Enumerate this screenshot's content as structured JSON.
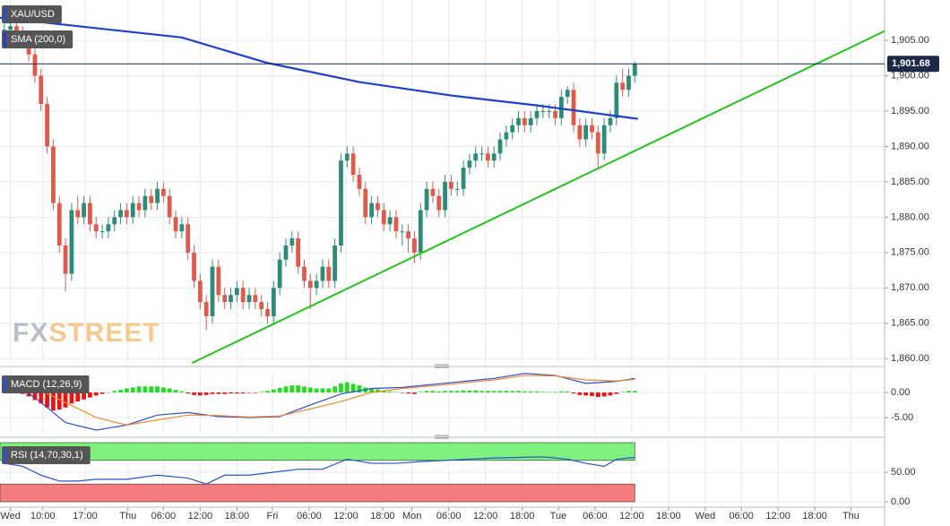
{
  "chart_data": [
    {
      "type": "candlestick",
      "name": "XAU/USD",
      "up_color": "#2e8b78",
      "down_color": "#e05a4c",
      "xlim": [
        -0.7,
        143.8
      ],
      "ylim": [
        1859.4,
        1910.7
      ],
      "grid": true,
      "yticks": [
        {
          "value": 1860,
          "label": "1,860.00"
        },
        {
          "value": 1865,
          "label": "1,865.00"
        },
        {
          "value": 1870,
          "label": "1,870.00"
        },
        {
          "value": 1875,
          "label": "1,875.00"
        },
        {
          "value": 1880,
          "label": "1,880.00"
        },
        {
          "value": 1885,
          "label": "1,885.00"
        },
        {
          "value": 1890,
          "label": "1,890.00"
        },
        {
          "value": 1895,
          "label": "1,895.00"
        },
        {
          "value": 1900,
          "label": "1,900.00"
        },
        {
          "value": 1905,
          "label": "1,905.00"
        }
      ],
      "xticks": [
        {
          "value": 1,
          "label": "Wed"
        },
        {
          "value": 6.3,
          "label": "10:00"
        },
        {
          "value": 13.2,
          "label": "17:00"
        },
        {
          "value": 20.2,
          "label": "Thu"
        },
        {
          "value": 26,
          "label": "06:00"
        },
        {
          "value": 32,
          "label": "12:00"
        },
        {
          "value": 38,
          "label": "18:00"
        },
        {
          "value": 43.8,
          "label": "Fri"
        },
        {
          "value": 49.8,
          "label": "06:00"
        },
        {
          "value": 55.8,
          "label": "12:00"
        },
        {
          "value": 61.8,
          "label": "18:00"
        },
        {
          "value": 66.6,
          "label": "Mon"
        },
        {
          "value": 72.6,
          "label": "06:00"
        },
        {
          "value": 78.6,
          "label": "12:00"
        },
        {
          "value": 84.6,
          "label": "18:00"
        },
        {
          "value": 90.5,
          "label": "Tue"
        },
        {
          "value": 96.5,
          "label": "06:00"
        },
        {
          "value": 102.5,
          "label": "12:00"
        },
        {
          "value": 108.5,
          "label": "18:00"
        },
        {
          "value": 114.5,
          "label": "Wed"
        },
        {
          "value": 120.4,
          "label": "06:00"
        },
        {
          "value": 126.4,
          "label": "12:00"
        },
        {
          "value": 132.4,
          "label": "18:00"
        },
        {
          "value": 138.3,
          "label": "Thu"
        }
      ],
      "ohlc": [
        [
          1906,
          1907.5,
          1905,
          1906.5
        ],
        [
          1906.5,
          1908,
          1905.5,
          1907
        ],
        [
          1907,
          1908,
          1905,
          1906
        ],
        [
          1906,
          1907,
          1904,
          1905
        ],
        [
          1905,
          1906,
          1902,
          1903
        ],
        [
          1903,
          1904,
          1899,
          1900
        ],
        [
          1900,
          1901,
          1895,
          1896
        ],
        [
          1896,
          1897,
          1889,
          1890
        ],
        [
          1890,
          1891,
          1881,
          1882
        ],
        [
          1882,
          1883,
          1875,
          1876
        ],
        [
          1876,
          1877,
          1869.5,
          1872
        ],
        [
          1872,
          1882,
          1871,
          1881
        ],
        [
          1881,
          1883,
          1879,
          1880
        ],
        [
          1880,
          1883,
          1879,
          1882
        ],
        [
          1882,
          1883,
          1878,
          1879
        ],
        [
          1879,
          1880,
          1877,
          1878
        ],
        [
          1878,
          1879,
          1877,
          1878
        ],
        [
          1878,
          1880,
          1877,
          1879
        ],
        [
          1879,
          1881,
          1878,
          1880
        ],
        [
          1880,
          1882,
          1879,
          1881
        ],
        [
          1881,
          1882,
          1879,
          1880
        ],
        [
          1880,
          1883,
          1879,
          1882
        ],
        [
          1882,
          1883,
          1880,
          1881
        ],
        [
          1881,
          1884,
          1880,
          1883
        ],
        [
          1883,
          1884,
          1881,
          1882
        ],
        [
          1882,
          1885,
          1881,
          1884
        ],
        [
          1884,
          1885,
          1882,
          1883
        ],
        [
          1883,
          1884,
          1879,
          1880
        ],
        [
          1880,
          1881,
          1877,
          1878
        ],
        [
          1878,
          1880,
          1877,
          1879
        ],
        [
          1879,
          1880,
          1874,
          1875
        ],
        [
          1875,
          1876,
          1870,
          1871
        ],
        [
          1871,
          1872,
          1867,
          1868
        ],
        [
          1868,
          1869,
          1864,
          1866
        ],
        [
          1866,
          1874,
          1865,
          1873
        ],
        [
          1873,
          1874,
          1868,
          1869
        ],
        [
          1869,
          1870,
          1867,
          1868
        ],
        [
          1868,
          1870,
          1867,
          1869
        ],
        [
          1869,
          1871,
          1868,
          1870
        ],
        [
          1870,
          1871,
          1867,
          1868
        ],
        [
          1868,
          1870,
          1867,
          1869
        ],
        [
          1869,
          1870,
          1867,
          1868
        ],
        [
          1868,
          1869,
          1866,
          1867
        ],
        [
          1867,
          1868,
          1865,
          1866
        ],
        [
          1866,
          1871,
          1865,
          1870
        ],
        [
          1870,
          1875,
          1869,
          1874
        ],
        [
          1874,
          1877,
          1873,
          1876
        ],
        [
          1876,
          1878,
          1875,
          1877
        ],
        [
          1877,
          1878,
          1872,
          1873
        ],
        [
          1873,
          1874,
          1870,
          1871
        ],
        [
          1871,
          1872,
          1867,
          1870
        ],
        [
          1870,
          1872,
          1869,
          1871
        ],
        [
          1871,
          1874,
          1870,
          1873
        ],
        [
          1873,
          1874,
          1870,
          1871
        ],
        [
          1871,
          1877,
          1870,
          1876
        ],
        [
          1876,
          1889,
          1875,
          1888
        ],
        [
          1888,
          1890,
          1887,
          1889
        ],
        [
          1889,
          1890,
          1885,
          1886
        ],
        [
          1886,
          1887,
          1883,
          1884
        ],
        [
          1884,
          1885,
          1879,
          1880
        ],
        [
          1880,
          1883,
          1879,
          1882
        ],
        [
          1882,
          1883,
          1880,
          1881
        ],
        [
          1881,
          1882,
          1878,
          1879
        ],
        [
          1879,
          1881,
          1878,
          1880
        ],
        [
          1880,
          1881,
          1877,
          1878
        ],
        [
          1878,
          1879,
          1876,
          1878
        ],
        [
          1878,
          1879,
          1875,
          1877
        ],
        [
          1877,
          1878,
          1873.5,
          1875
        ],
        [
          1875,
          1882,
          1874,
          1881
        ],
        [
          1881,
          1885,
          1880,
          1884
        ],
        [
          1884,
          1885,
          1882,
          1883
        ],
        [
          1883,
          1884,
          1880,
          1881
        ],
        [
          1881,
          1886,
          1880,
          1885
        ],
        [
          1885,
          1886,
          1883,
          1884
        ],
        [
          1884,
          1885,
          1883,
          1884
        ],
        [
          1884,
          1888,
          1883,
          1887
        ],
        [
          1887,
          1889,
          1886,
          1888
        ],
        [
          1888,
          1890,
          1887,
          1889
        ],
        [
          1889,
          1890,
          1888,
          1889
        ],
        [
          1889,
          1890,
          1887,
          1888
        ],
        [
          1888,
          1890,
          1887,
          1889
        ],
        [
          1889,
          1892,
          1888,
          1891
        ],
        [
          1891,
          1893,
          1890,
          1892
        ],
        [
          1892,
          1894,
          1891,
          1893
        ],
        [
          1893,
          1895,
          1892,
          1894
        ],
        [
          1894,
          1895,
          1892,
          1893
        ],
        [
          1893,
          1895,
          1892,
          1894
        ],
        [
          1894,
          1896,
          1893,
          1895
        ],
        [
          1895,
          1896,
          1894,
          1895
        ],
        [
          1895,
          1896,
          1894,
          1895
        ],
        [
          1895,
          1896,
          1893,
          1894
        ],
        [
          1894,
          1898,
          1893,
          1897
        ],
        [
          1897,
          1898.5,
          1896,
          1898
        ],
        [
          1898,
          1899,
          1892,
          1893
        ],
        [
          1893,
          1894,
          1890,
          1891
        ],
        [
          1891,
          1894,
          1890,
          1893
        ],
        [
          1893,
          1894,
          1891,
          1892
        ],
        [
          1892,
          1893,
          1887,
          1889
        ],
        [
          1889,
          1894,
          1888,
          1893
        ],
        [
          1893,
          1895,
          1892,
          1894
        ],
        [
          1894,
          1900,
          1893,
          1899
        ],
        [
          1899,
          1901,
          1897,
          1898
        ],
        [
          1898,
          1901,
          1897,
          1900
        ],
        [
          1900,
          1902,
          1899,
          1901.68
        ]
      ],
      "sma": {
        "name": "SMA (200,0)",
        "color": "#1f3fcf",
        "x": [
          -0.7,
          29,
          43,
          58,
          73,
          87,
          103.5
        ],
        "values": [
          1908.2,
          1905.4,
          1901.8,
          1899.1,
          1897.2,
          1895.8,
          1893.9
        ]
      },
      "trendline": {
        "color": "#22c41a",
        "x": [
          30.7,
          143.8
        ],
        "values": [
          1859.4,
          1906.3
        ]
      },
      "price_line": {
        "value": 1901.68,
        "value_label": "1,901.68",
        "color": "#1c2a4a"
      },
      "watermark": [
        "FX",
        "STREET"
      ]
    },
    {
      "type": "macd",
      "name": "MACD (12,26,9)",
      "xlim": [
        -0.7,
        143.8
      ],
      "ylim": [
        -8.4,
        4.46
      ],
      "grid": true,
      "yticks": [
        {
          "value": -5,
          "label": "-5.00"
        },
        {
          "value": 0,
          "label": "0.00"
        }
      ],
      "histogram": {
        "up_color": "#22dd22",
        "down_color": "#ee1111",
        "values": [
          0.3,
          0.1,
          -0.1,
          -0.3,
          -0.8,
          -1.5,
          -2.2,
          -3,
          -3.6,
          -3.4,
          -3,
          -2.2,
          -1.8,
          -1.4,
          -1,
          -0.6,
          -0.3,
          0,
          0.3,
          0.5,
          0.8,
          1,
          1.2,
          1.2,
          1.2,
          1.2,
          1,
          0.8,
          0.5,
          0.2,
          -0.2,
          -0.5,
          -0.6,
          -0.5,
          -0.3,
          -0.3,
          -0.3,
          -0.2,
          -0.2,
          -0.2,
          -0.1,
          -0.1,
          0.1,
          0.3,
          0.6,
          0.9,
          1.2,
          1.4,
          1.4,
          1.2,
          1,
          0.8,
          0.8,
          0.8,
          1.2,
          1.8,
          2,
          1.7,
          1.4,
          1,
          0.8,
          0.6,
          0.4,
          0.2,
          0.1,
          -0.1,
          -0.2,
          -0.3,
          0.1,
          0.3,
          0.3,
          0.2,
          0.3,
          0.3,
          0.3,
          0.4,
          0.4,
          0.4,
          0.3,
          0.3,
          0.3,
          0.3,
          0.3,
          0.3,
          0.3,
          0.2,
          0.2,
          0.2,
          0.1,
          0.1,
          0.1,
          0.2,
          0.2,
          -0.2,
          -0.5,
          -0.6,
          -0.7,
          -0.9,
          -0.8,
          -0.6,
          -0.3,
          0.1,
          0.3,
          0.3
        ]
      },
      "x": [
        0,
        5,
        10,
        15,
        20,
        25,
        30,
        35,
        40,
        45,
        50,
        55,
        60,
        65,
        70,
        75,
        80,
        85,
        90,
        95,
        100,
        103
      ],
      "series": [
        {
          "color": "#2a4fd8",
          "values": [
            2.7,
            -1,
            -6,
            -7.5,
            -6.5,
            -4.5,
            -4,
            -4.8,
            -5,
            -4.8,
            -2.5,
            -0.3,
            0.8,
            1,
            1.6,
            2.2,
            2.8,
            3.8,
            3.4,
            1.8,
            2.2,
            2.8
          ]
        },
        {
          "color": "#f08a2a",
          "values": [
            2.5,
            1,
            -2,
            -5,
            -6.5,
            -5.5,
            -4.5,
            -4.6,
            -4.9,
            -4.7,
            -3.3,
            -1.8,
            0,
            0.8,
            1.3,
            1.9,
            2.5,
            3.4,
            3.3,
            2.5,
            2.3,
            2.6
          ]
        }
      ]
    },
    {
      "type": "rsi",
      "name": "RSI (14,70,30,1)",
      "xlim": [
        -0.7,
        143.8
      ],
      "ylim": [
        -7.6,
        103
      ],
      "grid": true,
      "yticks": [
        {
          "value": 0,
          "label": "0.00"
        },
        {
          "value": 50,
          "label": "50.00"
        }
      ],
      "bands": [
        {
          "from": 70,
          "to": 100,
          "color": "#7df07d"
        },
        {
          "from": 0,
          "to": 30,
          "color": "#f47c7c"
        }
      ],
      "x": [
        0,
        3,
        6,
        9,
        12,
        15,
        20,
        25,
        30,
        33,
        36,
        40,
        44,
        48,
        52,
        56,
        60,
        64,
        68,
        72,
        76,
        80,
        84,
        88,
        92,
        95,
        98,
        100,
        103
      ],
      "series": [
        {
          "color": "#2a4fd8",
          "values": [
            65,
            60,
            45,
            35,
            35,
            38,
            38,
            45,
            40,
            30,
            45,
            45,
            50,
            55,
            55,
            72,
            65,
            65,
            68,
            70,
            72,
            74,
            75,
            76,
            72,
            65,
            60,
            72,
            75
          ]
        }
      ]
    }
  ]
}
